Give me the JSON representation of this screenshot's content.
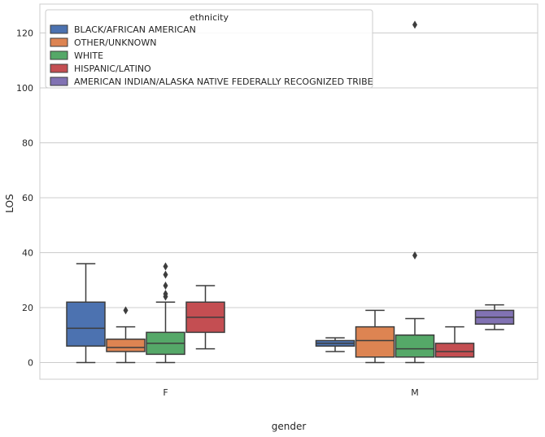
{
  "chart_data": {
    "type": "box",
    "xlabel": "gender",
    "ylabel": "LOS",
    "ylim": [
      -6,
      129
    ],
    "yticks": [
      0,
      20,
      40,
      60,
      80,
      100,
      120
    ],
    "grid": true,
    "legend": {
      "title": "ethnicity",
      "placement": "top-left"
    },
    "categories": [
      "F",
      "M"
    ],
    "series": [
      {
        "name": "BLACK/AFRICAN AMERICAN",
        "color": "#4c72b0",
        "boxes": [
          {
            "category": "F",
            "whisker_low": 0,
            "q1": 6,
            "median": 12.5,
            "q3": 22,
            "whisker_high": 36,
            "outliers": []
          },
          {
            "category": "M",
            "whisker_low": 4,
            "q1": 6,
            "median": 7,
            "q3": 8,
            "whisker_high": 9,
            "outliers": []
          }
        ]
      },
      {
        "name": "OTHER/UNKNOWN",
        "color": "#dd8452",
        "boxes": [
          {
            "category": "F",
            "whisker_low": 0,
            "q1": 4,
            "median": 5.5,
            "q3": 8.5,
            "whisker_high": 13,
            "outliers": [
              19
            ]
          },
          {
            "category": "M",
            "whisker_low": 0,
            "q1": 2,
            "median": 8,
            "q3": 13,
            "whisker_high": 19,
            "outliers": []
          }
        ]
      },
      {
        "name": "WHITE",
        "color": "#55a868",
        "boxes": [
          {
            "category": "F",
            "whisker_low": 0,
            "q1": 3,
            "median": 7,
            "q3": 11,
            "whisker_high": 22,
            "outliers": [
              24,
              25,
              28,
              32,
              35
            ]
          },
          {
            "category": "M",
            "whisker_low": 0,
            "q1": 2,
            "median": 5,
            "q3": 10,
            "whisker_high": 16,
            "outliers": [
              39,
              123
            ]
          }
        ]
      },
      {
        "name": "HISPANIC/LATINO",
        "color": "#c44e52",
        "boxes": [
          {
            "category": "F",
            "whisker_low": 5,
            "q1": 11,
            "median": 16.5,
            "q3": 22,
            "whisker_high": 28,
            "outliers": []
          },
          {
            "category": "M",
            "whisker_low": 2,
            "q1": 2,
            "median": 4,
            "q3": 7,
            "whisker_high": 13,
            "outliers": []
          }
        ]
      },
      {
        "name": "AMERICAN INDIAN/ALASKA NATIVE FEDERALLY RECOGNIZED TRIBE",
        "color": "#8172b3",
        "boxes": [
          {
            "category": "M",
            "whisker_low": 12,
            "q1": 14,
            "median": 16.5,
            "q3": 19,
            "whisker_high": 21,
            "outliers": []
          }
        ]
      }
    ]
  }
}
